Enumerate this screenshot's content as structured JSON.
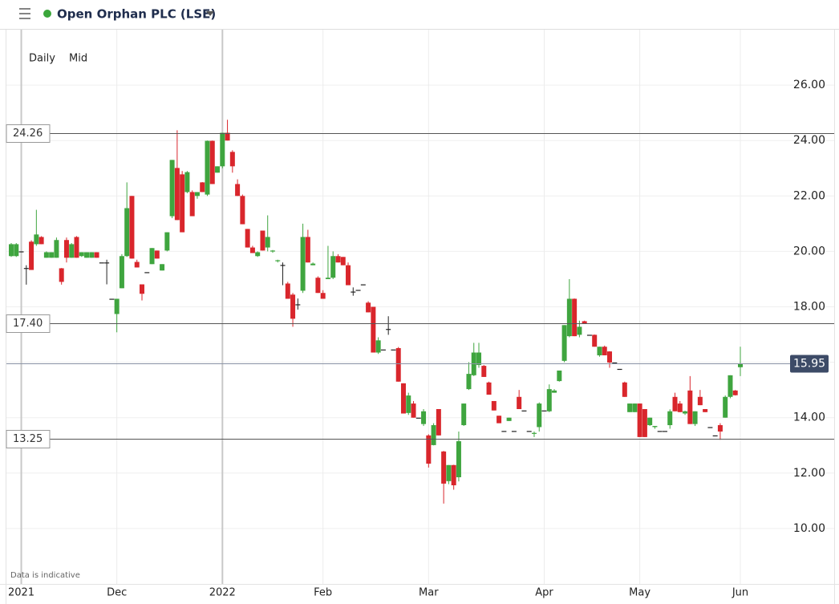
{
  "header": {
    "title": "Open Orphan PLC (LSE)",
    "interval": "Daily",
    "price_type": "Mid"
  },
  "chart_data": {
    "type": "candlestick",
    "note": "Data is indicative",
    "up_color": "#3fa53f",
    "down_color": "#d9262c",
    "flat_color": "#222222",
    "ylim": [
      8,
      28
    ],
    "yticks": [
      {
        "value": 10,
        "label": "10.00"
      },
      {
        "value": 12,
        "label": "12.00"
      },
      {
        "value": 14,
        "label": "14.00"
      },
      {
        "value": 16,
        "label": "16.00"
      },
      {
        "value": 18,
        "label": "18.00"
      },
      {
        "value": 20,
        "label": "20.00"
      },
      {
        "value": 22,
        "label": "22.00"
      },
      {
        "value": 24,
        "label": "24.00"
      },
      {
        "value": 26,
        "label": "26.00"
      }
    ],
    "reference_lines": [
      24.26,
      {
        "value": 17.4,
        "label": "17.40"
      },
      13.25
    ],
    "last_price": 15.95,
    "categories": [
      null,
      null,
      "2021",
      null,
      null,
      null,
      null,
      null,
      null,
      null,
      null,
      null,
      null,
      null,
      null,
      null,
      null,
      null,
      null,
      null,
      null,
      "Dec",
      null,
      null,
      null,
      null,
      null,
      null,
      null,
      null,
      null,
      null,
      null,
      null,
      null,
      null,
      null,
      null,
      null,
      null,
      null,
      null,
      "2022",
      null,
      null,
      null,
      null,
      null,
      null,
      null,
      null,
      null,
      null,
      null,
      null,
      null,
      null,
      null,
      null,
      null,
      null,
      null,
      "Feb",
      null,
      null,
      null,
      null,
      null,
      null,
      null,
      null,
      null,
      null,
      null,
      null,
      null,
      null,
      null,
      null,
      null,
      null,
      null,
      null,
      "Mar",
      null,
      null,
      null,
      null,
      null,
      null,
      null,
      null,
      null,
      null,
      null,
      null,
      null,
      null,
      null,
      null,
      null,
      null,
      null,
      null,
      null,
      null,
      "Apr",
      null,
      null,
      null,
      null,
      null,
      null,
      null,
      null,
      null,
      null,
      null,
      null,
      null,
      null,
      null,
      null,
      null,
      null,
      "May",
      null,
      null,
      null,
      null,
      null,
      null,
      null,
      null,
      null,
      null,
      null,
      null,
      null,
      null,
      null,
      null,
      null,
      null,
      null,
      "Jun"
    ],
    "open": [
      19.83,
      19.83,
      20.0,
      19.4,
      20.35,
      20.26,
      20.52,
      19.77,
      19.77,
      19.77,
      19.39,
      20.41,
      19.77,
      20.52,
      19.83,
      19.77,
      19.77,
      19.97,
      19.6,
      19.6,
      18.29,
      17.74,
      18.67,
      19.83,
      22.0,
      19.62,
      18.81,
      19.25,
      19.54,
      20.03,
      19.31,
      20.03,
      21.27,
      23.01,
      22.78,
      22.14,
      22.14,
      22.0,
      22.49,
      22.05,
      23.99,
      22.84,
      23.07,
      24.28,
      23.59,
      22.43,
      22.0,
      20.81,
      20.14,
      19.83,
      20.75,
      20.14,
      20.0,
      19.65,
      19.51,
      18.84,
      18.44,
      18.09,
      18.58,
      20.52,
      19.5,
      19.05,
      18.5,
      19.0,
      19.05,
      19.83,
      19.8,
      19.5,
      18.55,
      18.61,
      18.81,
      18.15,
      18.0,
      16.35,
      16.46,
      17.2,
      16.46,
      16.51,
      15.24,
      14.17,
      14.51,
      14.0,
      13.77,
      13.36,
      13.01,
      14.31,
      12.78,
      11.71,
      12.29,
      11.85,
      13.73,
      15.03,
      15.53,
      15.9,
      15.87,
      15.27,
      14.6,
      14.07,
      13.52,
      13.88,
      13.52,
      14.75,
      14.26,
      13.52,
      13.43,
      13.66,
      14.26,
      14.23,
      14.9,
      15.32,
      16.05,
      16.94,
      18.29,
      16.99,
      17.48,
      16.99,
      16.99,
      16.25,
      16.56,
      16.39,
      15.99,
      15.76,
      15.27,
      14.2,
      14.2,
      14.51,
      14.31,
      13.73,
      13.66,
      13.52,
      13.52,
      13.73,
      14.75,
      14.51,
      14.15,
      14.98,
      13.77,
      14.75,
      14.31,
      13.66,
      13.36,
      13.73,
      14.0,
      14.75,
      14.98,
      15.82
    ],
    "high": [
      20.3,
      20.3,
      20.0,
      19.5,
      20.4,
      21.5,
      20.55,
      20.0,
      19.97,
      20.5,
      19.4,
      20.5,
      20.3,
      20.55,
      19.97,
      19.97,
      19.97,
      19.97,
      19.6,
      19.7,
      18.29,
      18.29,
      19.9,
      22.49,
      22.0,
      19.7,
      18.81,
      19.25,
      20.12,
      20.03,
      19.54,
      20.69,
      23.3,
      24.37,
      22.9,
      22.9,
      22.2,
      22.14,
      22.5,
      24.0,
      24.0,
      23.07,
      24.28,
      24.75,
      23.65,
      22.6,
      22.05,
      20.81,
      20.2,
      20.0,
      20.75,
      21.3,
      20.05,
      19.7,
      19.6,
      18.9,
      18.5,
      18.3,
      21.0,
      20.78,
      19.6,
      19.1,
      18.6,
      20.2,
      20.0,
      19.9,
      19.8,
      19.6,
      18.7,
      18.61,
      18.81,
      18.2,
      18.0,
      16.9,
      16.46,
      17.66,
      16.46,
      16.55,
      15.24,
      14.9,
      14.6,
      14.0,
      14.31,
      13.4,
      13.8,
      14.31,
      12.8,
      12.29,
      12.3,
      13.5,
      14.51,
      16.0,
      16.7,
      16.7,
      15.9,
      15.3,
      14.6,
      14.07,
      13.52,
      14.0,
      13.52,
      15.0,
      14.26,
      13.52,
      13.5,
      14.55,
      14.26,
      15.2,
      15.03,
      15.7,
      17.34,
      19.0,
      18.3,
      17.5,
      17.5,
      16.99,
      17.0,
      16.56,
      16.6,
      16.4,
      15.99,
      15.76,
      15.3,
      14.51,
      14.51,
      14.51,
      14.31,
      14.0,
      13.7,
      13.52,
      13.52,
      14.3,
      14.9,
      14.6,
      14.25,
      15.5,
      14.23,
      15.0,
      14.31,
      13.66,
      13.36,
      13.8,
      14.8,
      15.53,
      15.0,
      16.56
    ],
    "low": [
      19.8,
      19.8,
      20.0,
      18.8,
      19.33,
      20.2,
      20.26,
      19.77,
      19.77,
      19.77,
      18.8,
      19.6,
      19.77,
      19.77,
      19.8,
      19.77,
      19.77,
      19.77,
      19.6,
      18.81,
      18.29,
      17.08,
      18.67,
      19.8,
      19.74,
      19.42,
      18.23,
      19.25,
      19.54,
      19.74,
      19.31,
      20.0,
      21.2,
      21.13,
      20.69,
      22.1,
      21.27,
      21.9,
      22.14,
      22.0,
      22.43,
      22.84,
      23.0,
      24.0,
      22.84,
      22.0,
      20.98,
      20.14,
      19.94,
      19.8,
      20.03,
      20.0,
      19.95,
      19.6,
      18.78,
      18.29,
      17.28,
      17.9,
      18.5,
      19.6,
      19.5,
      18.5,
      18.29,
      19.0,
      19.0,
      19.6,
      19.5,
      18.78,
      18.4,
      18.61,
      18.81,
      17.8,
      16.35,
      16.3,
      16.46,
      16.99,
      16.46,
      15.3,
      14.15,
      14.1,
      14.0,
      14.0,
      13.7,
      12.2,
      13.0,
      13.36,
      10.9,
      11.6,
      11.4,
      11.7,
      13.7,
      15.0,
      15.5,
      15.8,
      15.47,
      14.83,
      14.26,
      13.8,
      13.52,
      13.88,
      13.52,
      14.31,
      14.26,
      13.52,
      13.3,
      13.5,
      14.26,
      14.2,
      14.9,
      15.3,
      16.0,
      16.9,
      16.94,
      16.9,
      17.4,
      16.99,
      16.56,
      16.2,
      16.25,
      15.8,
      15.99,
      15.76,
      14.75,
      14.2,
      14.2,
      13.3,
      13.3,
      13.7,
      13.6,
      13.52,
      13.52,
      13.6,
      14.23,
      14.2,
      14.1,
      13.77,
      13.7,
      14.45,
      14.2,
      13.66,
      13.36,
      13.2,
      14.0,
      14.7,
      14.8,
      15.5
    ],
    "close": [
      20.26,
      20.26,
      20.0,
      19.4,
      19.33,
      20.61,
      20.26,
      19.97,
      19.97,
      20.41,
      18.9,
      19.77,
      20.26,
      19.77,
      19.97,
      19.97,
      19.97,
      19.77,
      19.6,
      19.6,
      18.29,
      18.29,
      19.83,
      21.56,
      19.74,
      19.42,
      18.47,
      19.25,
      20.12,
      19.74,
      19.54,
      20.69,
      23.3,
      21.13,
      20.69,
      22.86,
      21.27,
      22.14,
      22.14,
      23.99,
      22.43,
      23.07,
      24.28,
      24.0,
      23.07,
      22.0,
      20.98,
      20.14,
      19.94,
      19.97,
      20.03,
      20.52,
      20.03,
      19.68,
      19.51,
      18.29,
      17.57,
      18.09,
      20.52,
      19.6,
      19.56,
      18.5,
      18.29,
      19.05,
      19.83,
      19.6,
      19.5,
      18.78,
      18.55,
      18.61,
      18.81,
      17.8,
      16.35,
      16.79,
      16.46,
      17.2,
      16.46,
      15.3,
      14.15,
      14.8,
      14.0,
      14.0,
      14.23,
      12.34,
      13.73,
      13.36,
      11.62,
      12.29,
      11.56,
      13.15,
      14.51,
      15.58,
      16.35,
      16.35,
      15.47,
      14.83,
      14.26,
      13.8,
      13.52,
      14.0,
      13.52,
      14.31,
      14.26,
      13.52,
      13.45,
      14.51,
      14.26,
      15.03,
      14.98,
      15.7,
      17.34,
      18.29,
      16.94,
      17.28,
      17.4,
      16.99,
      16.56,
      16.56,
      16.25,
      15.99,
      15.99,
      15.76,
      14.75,
      14.51,
      14.51,
      13.3,
      13.3,
      14.0,
      13.7,
      13.52,
      13.52,
      14.23,
      14.23,
      14.2,
      14.23,
      13.77,
      14.23,
      14.45,
      14.2,
      13.66,
      13.36,
      13.5,
      14.75,
      15.53,
      14.81,
      15.95
    ]
  }
}
